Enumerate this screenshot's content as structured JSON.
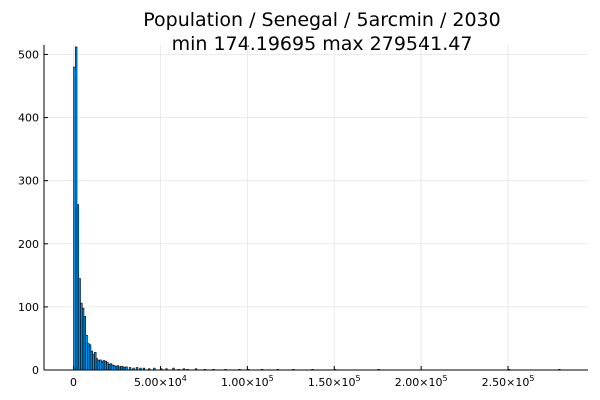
{
  "chart_data": {
    "type": "bar",
    "title": "Population / Senegal / 5arcmin / 2030",
    "subtitle": "min 174.19695  max 279541.47",
    "xlabel": "",
    "ylabel": "",
    "xlim": [
      -17000,
      296000
    ],
    "ylim": [
      0,
      515
    ],
    "grid": true,
    "legend": "none",
    "bar_color": "#009AFA",
    "bin_width": 1000,
    "x_ticks": [
      {
        "value": 0,
        "label": "0"
      },
      {
        "value": 50000,
        "label": "5.00×10",
        "exp": "4"
      },
      {
        "value": 100000,
        "label": "1.00×10",
        "exp": "5"
      },
      {
        "value": 150000,
        "label": "1.50×10",
        "exp": "5"
      },
      {
        "value": 200000,
        "label": "2.00×10",
        "exp": "5"
      },
      {
        "value": 250000,
        "label": "2.50×10",
        "exp": "5"
      }
    ],
    "y_ticks": [
      {
        "value": 0,
        "label": "0"
      },
      {
        "value": 100,
        "label": "100"
      },
      {
        "value": 200,
        "label": "200"
      },
      {
        "value": 300,
        "label": "300"
      },
      {
        "value": 400,
        "label": "400"
      },
      {
        "value": 500,
        "label": "500"
      }
    ],
    "bins_start": [
      0,
      1000,
      2000,
      3000,
      4000,
      5000,
      6000,
      7000,
      8000,
      9000,
      10000,
      11000,
      12000,
      13000,
      14000,
      15000,
      16000,
      17000,
      18000,
      19000,
      20000,
      21000,
      22000,
      23000,
      24000,
      25000,
      26000,
      27000,
      28000,
      29000,
      30000,
      32000,
      34000,
      36000,
      38000,
      40000,
      43000,
      46000,
      50000,
      53000,
      57000,
      60000,
      63000,
      65000,
      70000,
      75000,
      80000,
      87000,
      95000,
      100000,
      108000,
      117000,
      126000,
      137000,
      150000,
      175000,
      250000,
      279000
    ],
    "values": [
      480,
      512,
      262,
      145,
      106,
      98,
      85,
      55,
      42,
      40,
      30,
      25,
      28,
      18,
      15,
      16,
      14,
      15,
      14,
      12,
      9,
      10,
      8,
      7,
      6,
      7,
      5,
      6,
      5,
      4,
      5,
      4,
      3,
      4,
      3,
      3,
      2,
      3,
      2,
      2,
      3,
      1,
      2,
      1,
      2,
      1,
      1,
      1,
      1,
      1,
      1,
      1,
      1,
      1,
      1,
      1,
      1,
      1
    ]
  }
}
